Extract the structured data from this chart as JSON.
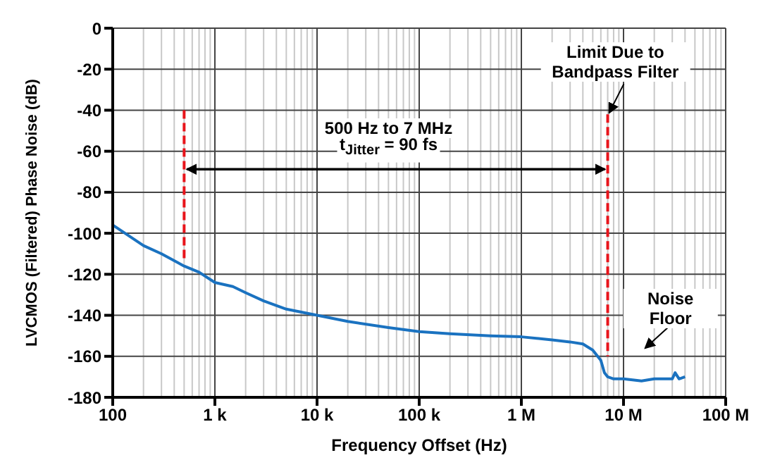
{
  "chart_data": {
    "type": "line",
    "xlabel": "Frequency Offset (Hz)",
    "ylabel": "LVCMOS (Filtered) Phase Noise (dB)",
    "log": "x",
    "grid": true,
    "marker": "none",
    "xlim": [
      100,
      100000000
    ],
    "xticks": [
      {
        "value": 100,
        "label": "100"
      },
      {
        "value": 1000,
        "label": "1 k"
      },
      {
        "value": 10000,
        "label": "10 k"
      },
      {
        "value": 100000,
        "label": "100 k"
      },
      {
        "value": 1000000,
        "label": "1 M"
      },
      {
        "value": 10000000,
        "label": "10 M"
      },
      {
        "value": 100000000,
        "label": "100 M"
      }
    ],
    "ylim": [
      -180,
      0
    ],
    "yticks": [
      -180,
      -160,
      -140,
      -120,
      -100,
      -80,
      -60,
      -40,
      -20,
      0
    ],
    "series": [
      {
        "color": "#1a72c0",
        "line_style": "solid",
        "x": [
          100,
          200,
          300,
          500,
          700,
          1000,
          1500,
          2000,
          3000,
          5000,
          10000,
          20000,
          50000,
          100000,
          200000,
          500000,
          1000000,
          2000000,
          3000000,
          4000000,
          5000000,
          6000000,
          6500000,
          7000000,
          8000000,
          10000000,
          15000000,
          20000000,
          30000000,
          32000000,
          35000000,
          40000000
        ],
        "values": [
          -96,
          -106,
          -110,
          -116,
          -119,
          -124,
          -126,
          -129,
          -133,
          -137,
          -140,
          -143,
          -146,
          -148,
          -149,
          -150,
          -150.5,
          -152,
          -153,
          -154,
          -157,
          -162,
          -168,
          -170,
          -171,
          -171,
          -172,
          -171,
          -171,
          -168,
          -171,
          -170
        ]
      },
      {
        "color": "#e8141b",
        "line_style": "dashed",
        "x": [
          500,
          500
        ],
        "values": [
          -40,
          -113
        ]
      },
      {
        "color": "#e8141b",
        "line_style": "dashed",
        "x": [
          7000000,
          7000000
        ],
        "values": [
          -42,
          -160
        ]
      }
    ],
    "annotations": [
      "500 Hz to 7 MHz",
      "t$_{Jitter}$ = 90 fs",
      "Limit Due to Bandpass Filter",
      "Noise Floor"
    ]
  }
}
